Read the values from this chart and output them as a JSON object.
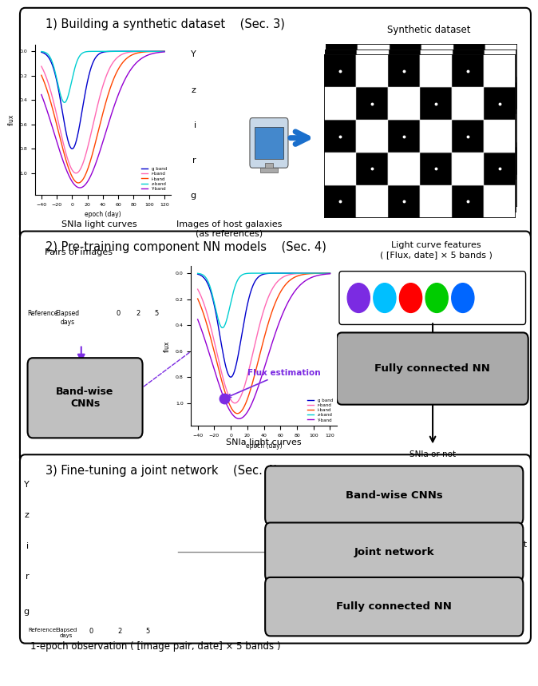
{
  "section1_title": "1) Building a synthetic dataset    (Sec. 3)",
  "section2_title": "2) Pre-training component NN models    (Sec. 4)",
  "section3_title": "3) Fine-tuning a joint network    (Sec. 4)",
  "dot_colors": [
    "#7B2BE2",
    "#00BFFF",
    "#FF0000",
    "#00CC00",
    "#0066FF"
  ],
  "light_curve_xlabel": "epoch (day)",
  "snIa_label": "SNIa light curves",
  "host_galaxy_label": "Images of host galaxies\n(as references)",
  "synthetic_dataset_label": "Synthetic dataset",
  "band_labels": [
    "Y",
    "z",
    "i",
    "r",
    "g"
  ],
  "band_wise_cnn_text": "Band-wise\nCNNs",
  "fully_connected_text": "Fully connected NN",
  "joint_network_text": "Joint network",
  "flux_estimation_text": "Flux estimation",
  "snIa_or_not": "SNIa or not",
  "pairs_of_images": "Pairs of images",
  "light_curve_features": "Light curve features\n( [Flux, date] × 5 bands )",
  "epoch_obs": "1-epoch observation ( [image pair, date] × 5 bands )"
}
